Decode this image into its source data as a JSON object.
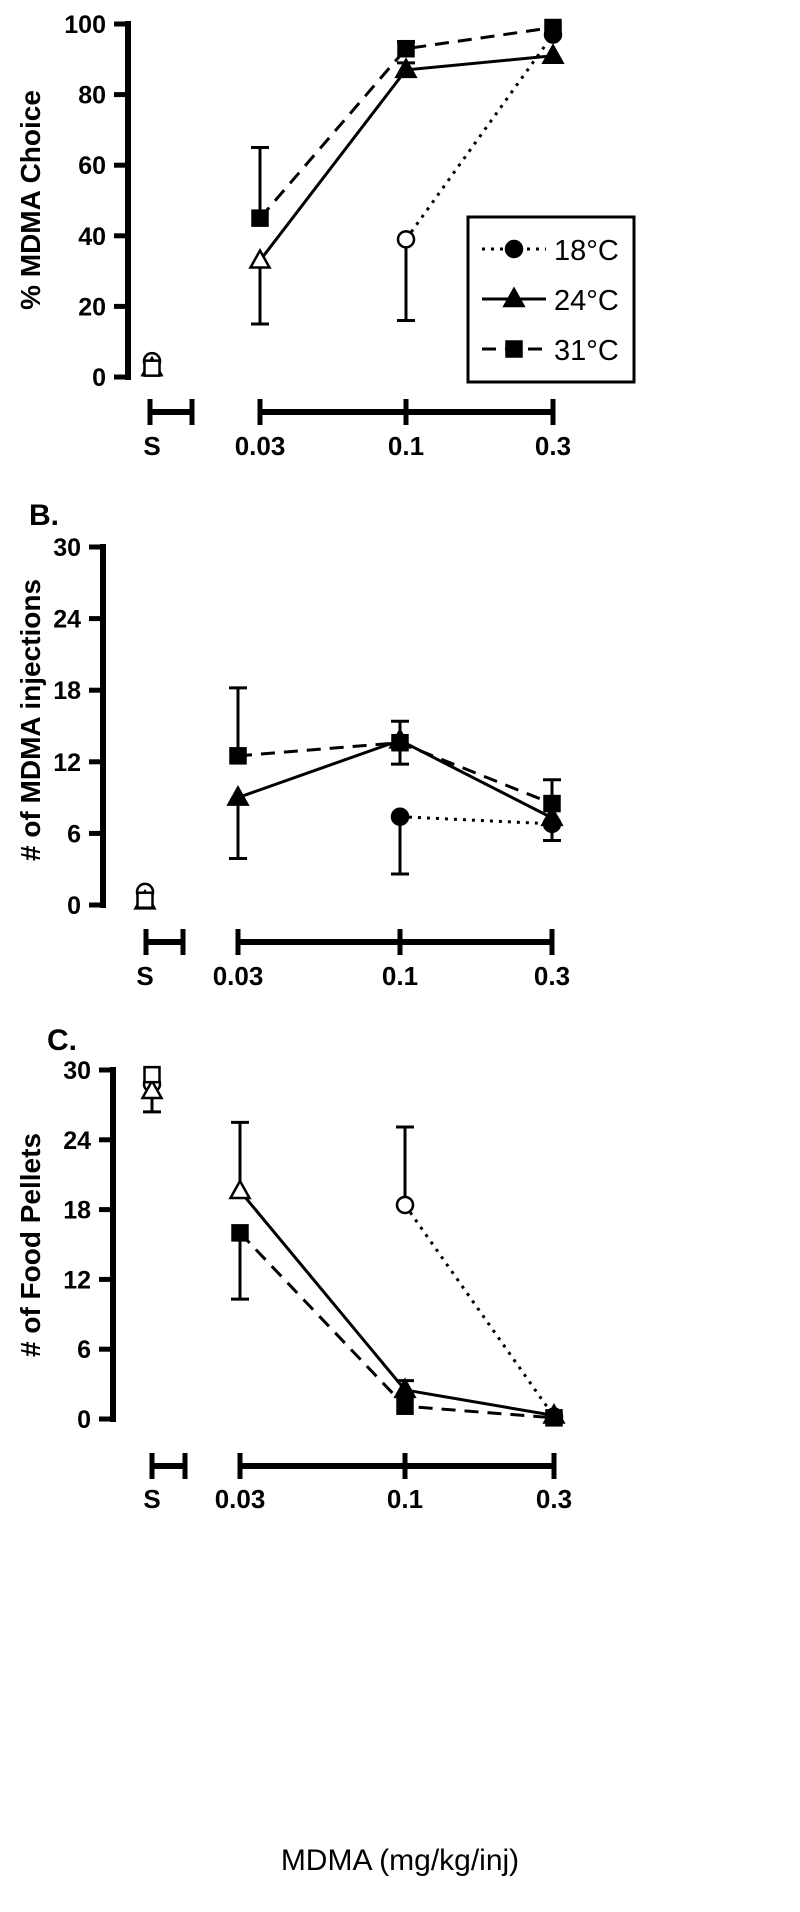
{
  "chart_data": [
    {
      "type": "line",
      "panel_label": "",
      "ylabel": "% MDMA Choice",
      "ylim": [
        0,
        100
      ],
      "yticks": [
        0,
        20,
        40,
        60,
        80,
        100
      ],
      "categories": [
        "S",
        "0.03",
        "0.1",
        "0.3"
      ],
      "legend": {
        "position": "right",
        "entries": [
          "18°C",
          "24°C",
          "31°C"
        ]
      },
      "series": [
        {
          "name": "18°C",
          "style": "dotted",
          "marker": "circle",
          "saline": 4.5,
          "x": [
            "0.1",
            "0.3"
          ],
          "values": [
            39,
            97
          ],
          "err": [
            23,
            0
          ],
          "open": [
            true,
            false
          ]
        },
        {
          "name": "24°C",
          "style": "solid",
          "marker": "triangle",
          "saline": 2.5,
          "x": [
            "0.03",
            "0.1",
            "0.3"
          ],
          "values": [
            33,
            87,
            91
          ],
          "err": [
            18,
            2,
            0
          ],
          "open": [
            true,
            false,
            false
          ]
        },
        {
          "name": "31°C",
          "style": "dashed",
          "marker": "square",
          "saline": 2.5,
          "x": [
            "0.03",
            "0.1",
            "0.3"
          ],
          "values": [
            45,
            93,
            99
          ],
          "err": [
            20,
            2,
            0
          ],
          "open": [
            false,
            false,
            false
          ]
        }
      ]
    },
    {
      "type": "line",
      "panel_label": "B.",
      "ylabel": "# of MDMA injections",
      "ylim": [
        0,
        30
      ],
      "yticks": [
        0,
        6,
        12,
        18,
        24,
        30
      ],
      "categories": [
        "S",
        "0.03",
        "0.1",
        "0.3"
      ],
      "series": [
        {
          "name": "18°C",
          "style": "dotted",
          "marker": "circle",
          "saline": 1.1,
          "x": [
            "0.1",
            "0.3"
          ],
          "values": [
            7.4,
            6.8
          ],
          "err": [
            4.8,
            0
          ],
          "open": [
            false,
            false
          ]
        },
        {
          "name": "24°C",
          "style": "solid",
          "marker": "triangle",
          "saline": 0.3,
          "x": [
            "0.03",
            "0.1",
            "0.3"
          ],
          "values": [
            9,
            13.8,
            7.3
          ],
          "err": [
            5.1,
            2,
            1.9
          ],
          "open": [
            false,
            false,
            false
          ]
        },
        {
          "name": "31°C",
          "style": "dashed",
          "marker": "square",
          "saline": 0.4,
          "x": [
            "0.03",
            "0.1",
            "0.3"
          ],
          "values": [
            12.5,
            13.6,
            8.5
          ],
          "err": [
            5.7,
            1.8,
            2
          ],
          "open": [
            false,
            false,
            false
          ]
        }
      ]
    },
    {
      "type": "line",
      "panel_label": "C.",
      "ylabel": "# of Food Pellets",
      "ylim": [
        0,
        30
      ],
      "yticks": [
        0,
        6,
        12,
        18,
        24,
        30
      ],
      "categories": [
        "S",
        "0.03",
        "0.1",
        "0.3"
      ],
      "xlabel": "MDMA (mg/kg/inj)",
      "series": [
        {
          "name": "18°C",
          "style": "dotted",
          "marker": "circle",
          "saline": 28.8,
          "x": [
            "0.1",
            "0.3"
          ],
          "values": [
            18.4,
            0.2
          ],
          "err": [
            6.7,
            0
          ],
          "open": [
            true,
            false
          ]
        },
        {
          "name": "24°C",
          "style": "solid",
          "marker": "triangle",
          "saline": 28.2,
          "x": [
            "0.03",
            "0.1",
            "0.3"
          ],
          "values": [
            19.6,
            2.5,
            0.3
          ],
          "err": [
            5.9,
            0.8,
            0
          ],
          "open": [
            true,
            false,
            false
          ]
        },
        {
          "name": "31°C",
          "style": "dashed",
          "marker": "square",
          "saline": 29.6,
          "x": [
            "0.03",
            "0.1",
            "0.3"
          ],
          "values": [
            16,
            1.1,
            0.1
          ],
          "err": [
            5.7,
            0,
            0
          ],
          "open": [
            false,
            false,
            false
          ]
        }
      ]
    }
  ]
}
